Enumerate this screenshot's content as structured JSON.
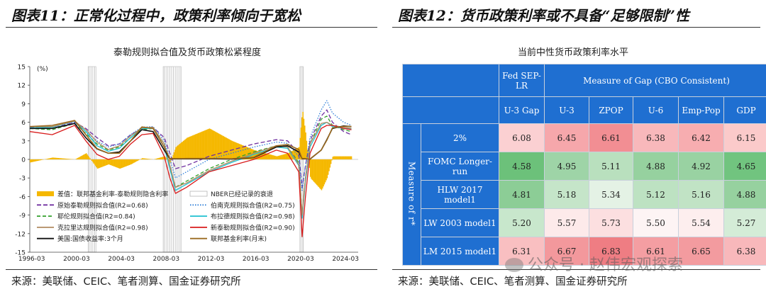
{
  "left": {
    "figure_title": "图表11：正常化过程中，政策利率倾向于宽松",
    "chart_title": "泰勒规则拟合值及货币政策松紧程度",
    "unit_label": "(%)",
    "source": "来源：美联储、CEIC、笔者测算、国金证券研究所"
  },
  "right": {
    "figure_title": "图表12：货币政策利率或不具备“足够限制”性",
    "chart_title": "当前中性货币政策利率水平",
    "source": "来源：美联储、CEIC、笔者测算、国金证券研究所",
    "watermark": "公众号 · 赵伟宏观探索"
  },
  "chart_data": [
    {
      "type": "line",
      "title": "泰勒规则拟合值及货币政策松紧程度",
      "ylabel": "(%)",
      "ylim": [
        -15,
        15
      ],
      "yticks": [
        15,
        12,
        9,
        6,
        3,
        0,
        -3,
        -6,
        -9,
        -12,
        -15
      ],
      "xticks": [
        "1996-03",
        "2000-03",
        "2004-03",
        "2008-03",
        "2012-03",
        "2016-03",
        "2020-03",
        "2024-03"
      ],
      "x": [
        1996,
        1998,
        2000,
        2001,
        2002,
        2003,
        2004,
        2005,
        2006,
        2007,
        2008,
        2008.5,
        2009,
        2010,
        2012,
        2014,
        2016,
        2018,
        2019,
        2020,
        2020.3,
        2020.6,
        2021,
        2022,
        2022.5,
        2023,
        2024,
        2024.7
      ],
      "recessions": [
        [
          2001.2,
          2001.9
        ],
        [
          2007.9,
          2009.5
        ],
        [
          2020.1,
          2020.4
        ]
      ],
      "legend": [
        "差值：联邦基金利率-泰勒规则隐含利率",
        "NBER已经记录的衰退",
        "原始泰勒规则拟合值(R2=0.68)",
        "伯南克规则拟合值(R2=0.75)",
        "耶伦规则拟合值(R2=0.84)",
        "布拉德规则拟合值(R2=0.98)",
        "克拉里达规则拟合值(R2=0.98)",
        "新泰勒规则拟合值(R2=0.90)",
        "美国:国债收益率:3个月",
        "联邦基金利率(月末)"
      ],
      "series": [
        {
          "name": "原始泰勒规则拟合值(R2=0.68)",
          "color": "#7030a0",
          "dash": "6,3",
          "values": [
            5.2,
            5.0,
            6.0,
            5.0,
            3.5,
            2.2,
            2.5,
            4.0,
            5.0,
            5.2,
            3.5,
            1.0,
            -1.5,
            -1.0,
            0.5,
            1.5,
            2.5,
            3.2,
            3.0,
            1.0,
            -4.5,
            -1.0,
            3.0,
            7.0,
            8.0,
            6.0,
            4.5,
            4.0
          ]
        },
        {
          "name": "伯南克规则拟合值(R2=0.75)",
          "color": "#2f7fd8",
          "dash": "1.5,2",
          "values": [
            5.0,
            5.3,
            6.0,
            4.5,
            3.0,
            2.0,
            2.5,
            4.0,
            5.2,
            5.3,
            3.0,
            0.0,
            -3.0,
            -2.0,
            0.0,
            1.0,
            2.0,
            2.8,
            2.6,
            0.5,
            -5.0,
            -1.0,
            3.5,
            8.0,
            9.5,
            7.5,
            6.0,
            5.5
          ]
        },
        {
          "name": "耶伦规则拟合值(R2=0.84)",
          "color": "#33a02c",
          "dash": "5,3",
          "values": [
            5.0,
            4.8,
            5.8,
            4.2,
            2.5,
            1.5,
            2.0,
            3.5,
            4.8,
            5.0,
            2.5,
            -1.0,
            -4.5,
            -3.5,
            -1.5,
            0.0,
            1.2,
            2.2,
            2.0,
            -0.5,
            -9.0,
            -3.0,
            2.5,
            6.5,
            7.0,
            5.5,
            4.8,
            4.5
          ]
        },
        {
          "name": "布拉德规则拟合值(R2=0.98)",
          "color": "#20c0d0",
          "dash": "",
          "values": [
            5.1,
            5.2,
            6.2,
            4.5,
            2.2,
            1.3,
            1.8,
            3.5,
            5.0,
            5.0,
            2.0,
            -1.5,
            -5.0,
            -4.0,
            -2.0,
            -0.5,
            0.8,
            2.0,
            1.8,
            -1.0,
            -9.5,
            -3.5,
            2.0,
            5.5,
            6.0,
            5.3,
            5.0,
            4.9
          ]
        },
        {
          "name": "克拉里达规则拟合值(R2=0.98)",
          "color": "#b08a60",
          "dash": "",
          "values": [
            5.3,
            5.3,
            6.2,
            4.8,
            2.8,
            1.6,
            2.2,
            3.8,
            5.1,
            5.2,
            2.5,
            -1.0,
            -4.5,
            -3.8,
            -1.8,
            -0.3,
            1.0,
            2.2,
            2.0,
            -0.8,
            -9.0,
            -3.0,
            2.5,
            5.8,
            6.0,
            5.5,
            5.2,
            5.0
          ]
        },
        {
          "name": "新泰勒规则拟合值(R2=0.90)",
          "color": "#d81b1b",
          "dash": "",
          "values": [
            4.5,
            4.0,
            5.5,
            3.0,
            0.8,
            0.0,
            0.5,
            2.5,
            4.0,
            4.2,
            0.5,
            -3.0,
            -5.5,
            -4.5,
            -2.0,
            -1.0,
            0.0,
            1.5,
            1.0,
            -2.0,
            -12.5,
            -6.0,
            1.0,
            5.0,
            5.5,
            5.5,
            5.0,
            4.8
          ]
        },
        {
          "name": "美国:国债收益率:3个月",
          "color": "#111111",
          "dash": "",
          "values": [
            5.0,
            5.0,
            5.8,
            3.5,
            1.7,
            1.0,
            1.2,
            3.0,
            4.8,
            4.5,
            1.5,
            0.1,
            0.1,
            0.1,
            0.1,
            0.05,
            0.3,
            2.0,
            2.2,
            1.2,
            0.1,
            0.1,
            0.05,
            1.5,
            3.2,
            5.0,
            5.4,
            5.3
          ]
        },
        {
          "name": "联邦基金利率(月末)",
          "color": "#9a6a20",
          "dash": "",
          "values": [
            5.3,
            5.5,
            6.3,
            4.0,
            1.75,
            1.0,
            1.0,
            3.0,
            5.25,
            5.0,
            2.0,
            0.15,
            0.12,
            0.15,
            0.15,
            0.1,
            0.35,
            2.2,
            2.4,
            1.6,
            0.05,
            0.08,
            0.08,
            1.5,
            3.1,
            5.1,
            5.33,
            5.33
          ]
        },
        {
          "name": "差值：联邦基金利率-泰勒规则隐含利率",
          "color": "#f5b800",
          "style": "bar",
          "values": [
            -0.5,
            0.3,
            0.0,
            1.0,
            -1.5,
            -0.8,
            -1.5,
            -0.8,
            0.2,
            0.0,
            0.5,
            -0.5,
            2.0,
            3.5,
            5.0,
            3.0,
            1.5,
            0.5,
            1.0,
            2.0,
            8.0,
            4.0,
            -3.0,
            -5.0,
            -3.0,
            0.5,
            0.5,
            0.5
          ]
        }
      ]
    },
    {
      "type": "table",
      "title": "当前中性货币政策利率水平",
      "column_groups": [
        {
          "label": "Fed SEP-LR",
          "span": 1
        },
        {
          "label": "Measure of Gap (CBO Consistent)",
          "span": 5
        }
      ],
      "columns": [
        "U-3 Gap",
        "U-3",
        "ZPOP",
        "U-6",
        "Emp-Pop",
        "GDP"
      ],
      "row_axis_label": "Measure of r*",
      "rows": [
        {
          "label": "2%",
          "values": [
            "6.08",
            "6.45",
            "6.61",
            "6.38",
            "6.42",
            "6.15"
          ],
          "colors": [
            "#fbd0d2",
            "#f6a7ab",
            "#f28e93",
            "#f8b8bb",
            "#f7adb0",
            "#fbcaca"
          ]
        },
        {
          "label": "FOMC Longer-run",
          "values": [
            "4.58",
            "4.95",
            "5.11",
            "4.88",
            "4.92",
            "4.65"
          ],
          "colors": [
            "#6cc17a",
            "#9ed4a7",
            "#b9e0be",
            "#96d19f",
            "#99d2a2",
            "#71c47f"
          ]
        },
        {
          "label": "HLW 2017 model1",
          "values": [
            "4.81",
            "5.18",
            "5.34",
            "5.12",
            "5.16",
            "4.88"
          ],
          "colors": [
            "#8ccd96",
            "#c5e5c9",
            "#e4f2e5",
            "#bde2c2",
            "#c1e3c5",
            "#96d19f"
          ]
        },
        {
          "label": "LW 2003 model1",
          "values": [
            "5.20",
            "5.57",
            "5.73",
            "5.50",
            "5.54",
            "5.27"
          ],
          "colors": [
            "#c8e7cc",
            "#fdeaea",
            "#fcdfe0",
            "#fdf4f4",
            "#fdeeee",
            "#d4ecd7"
          ]
        },
        {
          "label": "LM 2015 model1",
          "values": [
            "6.31",
            "6.67",
            "6.83",
            "6.61",
            "6.65",
            "6.38"
          ],
          "colors": [
            "#f9bfc1",
            "#f3989c",
            "#ef7d83",
            "#f49ea2",
            "#f39b9f",
            "#f8b8bb"
          ]
        }
      ]
    }
  ]
}
